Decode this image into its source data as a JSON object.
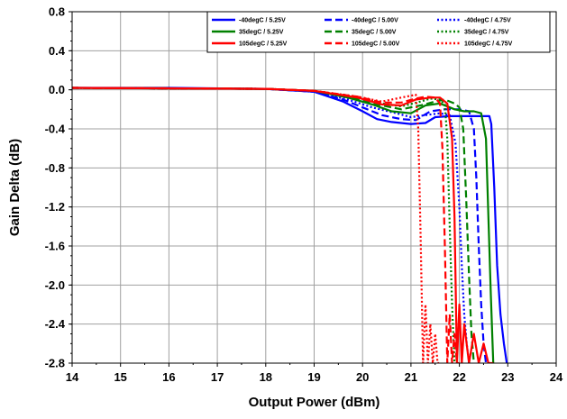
{
  "chart_data": {
    "type": "line",
    "title": "",
    "xlabel": "Output Power (dBm)",
    "ylabel": "Gain Delta (dB)",
    "xlim": [
      14,
      24
    ],
    "ylim": [
      -2.8,
      0.8
    ],
    "xticks": [
      14,
      15,
      16,
      17,
      18,
      19,
      20,
      21,
      22,
      23,
      24
    ],
    "yticks": [
      0.8,
      0.4,
      0.0,
      -0.4,
      -0.8,
      -1.2,
      -1.6,
      -2.0,
      -2.4,
      -2.8
    ],
    "xtick_labels": [
      "14",
      "15",
      "16",
      "17",
      "18",
      "19",
      "20",
      "21",
      "22",
      "23",
      "24"
    ],
    "ytick_labels": [
      "0.8",
      "0.4",
      "0.0",
      "-0.4",
      "-0.8",
      "-1.2",
      "-1.6",
      "-2.0",
      "-2.4",
      "-2.8"
    ],
    "grid": true,
    "legend_position": "top-right",
    "series": [
      {
        "name": "-40degC / 5.25V",
        "color": "#0000ff",
        "dash": "solid",
        "x": [
          14,
          16,
          18,
          19,
          19.6,
          20,
          20.3,
          20.6,
          21.0,
          21.3,
          21.5,
          21.8,
          22.0,
          22.3,
          22.5,
          22.62,
          22.66,
          22.72,
          22.78,
          22.85,
          22.92,
          22.98
        ],
        "y": [
          0.02,
          0.02,
          0.01,
          -0.02,
          -0.12,
          -0.22,
          -0.3,
          -0.33,
          -0.35,
          -0.34,
          -0.28,
          -0.27,
          -0.27,
          -0.27,
          -0.27,
          -0.27,
          -0.35,
          -1.0,
          -1.8,
          -2.3,
          -2.6,
          -2.8
        ]
      },
      {
        "name": "-40degC / 5.00V",
        "color": "#0000ff",
        "dash": "dashed",
        "x": [
          14,
          18,
          19,
          19.6,
          20,
          20.4,
          20.8,
          21.1,
          21.4,
          21.7,
          22.0,
          22.2,
          22.3,
          22.35,
          22.4,
          22.45,
          22.5,
          22.55
        ],
        "y": [
          0.02,
          0.01,
          -0.02,
          -0.1,
          -0.18,
          -0.26,
          -0.3,
          -0.31,
          -0.22,
          -0.2,
          -0.2,
          -0.22,
          -0.4,
          -0.9,
          -1.6,
          -2.2,
          -2.6,
          -2.8
        ]
      },
      {
        "name": "-40degC / 4.75V",
        "color": "#0000ff",
        "dash": "dotted",
        "x": [
          14,
          18,
          19,
          19.7,
          20.2,
          20.7,
          21.0,
          21.3,
          21.6,
          21.8,
          21.92,
          22.0,
          22.05,
          22.1,
          22.15,
          22.2
        ],
        "y": [
          0.02,
          0.01,
          -0.02,
          -0.1,
          -0.18,
          -0.24,
          -0.28,
          -0.26,
          -0.24,
          -0.26,
          -0.55,
          -1.2,
          -1.8,
          -2.3,
          -2.6,
          -2.8
        ]
      },
      {
        "name": "35degC / 5.25V",
        "color": "#008000",
        "dash": "solid",
        "x": [
          14,
          18,
          19,
          19.7,
          20.2,
          20.6,
          21.0,
          21.3,
          21.6,
          21.9,
          22.1,
          22.3,
          22.45,
          22.55,
          22.6,
          22.65,
          22.7
        ],
        "y": [
          0.02,
          0.01,
          -0.01,
          -0.08,
          -0.15,
          -0.22,
          -0.24,
          -0.16,
          -0.14,
          -0.2,
          -0.22,
          -0.22,
          -0.24,
          -0.5,
          -1.3,
          -2.1,
          -2.8
        ]
      },
      {
        "name": "35degC / 5.00V",
        "color": "#008000",
        "dash": "dashed",
        "x": [
          14,
          18,
          19,
          19.8,
          20.3,
          20.8,
          21.2,
          21.5,
          21.7,
          21.9,
          22.0,
          22.08,
          22.14,
          22.2,
          22.25,
          22.3
        ],
        "y": [
          0.02,
          0.01,
          -0.01,
          -0.08,
          -0.15,
          -0.2,
          -0.16,
          -0.12,
          -0.1,
          -0.14,
          -0.18,
          -0.4,
          -1.1,
          -1.9,
          -2.5,
          -2.8
        ]
      },
      {
        "name": "35degC / 4.75V",
        "color": "#008000",
        "dash": "dotted",
        "x": [
          14,
          18,
          19,
          19.9,
          20.4,
          20.8,
          21.2,
          21.4,
          21.6,
          21.7,
          21.75,
          21.8,
          21.85,
          21.9
        ],
        "y": [
          0.02,
          0.01,
          -0.01,
          -0.07,
          -0.14,
          -0.17,
          -0.12,
          -0.09,
          -0.1,
          -0.15,
          -0.5,
          -1.4,
          -2.2,
          -2.8
        ]
      },
      {
        "name": "105degC / 5.25V",
        "color": "#ff0000",
        "dash": "solid",
        "x": [
          14,
          18,
          19,
          19.9,
          20.4,
          20.8,
          21.1,
          21.4,
          21.6,
          21.75,
          21.85,
          21.9,
          21.95,
          22.0,
          22.05,
          22.1,
          22.2,
          22.3,
          22.4,
          22.5,
          22.6,
          22.7
        ],
        "y": [
          0.02,
          0.01,
          -0.01,
          -0.08,
          -0.15,
          -0.16,
          -0.1,
          -0.08,
          -0.08,
          -0.14,
          -0.5,
          -1.3,
          -2.8,
          -2.2,
          -2.8,
          -2.4,
          -2.8,
          -2.5,
          -2.8,
          -2.6,
          -2.8,
          -2.8
        ]
      },
      {
        "name": "105degC / 5.00V",
        "color": "#ff0000",
        "dash": "dashed",
        "x": [
          14,
          18,
          19,
          19.9,
          20.4,
          20.8,
          21.1,
          21.3,
          21.5,
          21.6,
          21.65,
          21.7,
          21.75,
          21.8,
          21.85,
          21.9,
          21.95,
          22.0
        ],
        "y": [
          0.02,
          0.01,
          -0.01,
          -0.07,
          -0.13,
          -0.13,
          -0.09,
          -0.07,
          -0.08,
          -0.14,
          -0.6,
          -1.6,
          -2.8,
          -2.3,
          -2.8,
          -2.5,
          -2.8,
          -2.8
        ]
      },
      {
        "name": "105degC / 4.75V",
        "color": "#ff0000",
        "dash": "dotted",
        "x": [
          14,
          18,
          19,
          19.9,
          20.4,
          20.8,
          21.0,
          21.1,
          21.15,
          21.2,
          21.25,
          21.3,
          21.35,
          21.4,
          21.45,
          21.5,
          21.55,
          21.6
        ],
        "y": [
          0.02,
          0.01,
          -0.01,
          -0.07,
          -0.12,
          -0.08,
          -0.06,
          -0.05,
          -0.4,
          -1.5,
          -2.8,
          -2.2,
          -2.8,
          -2.4,
          -2.8,
          -2.5,
          -2.8,
          -2.8
        ]
      }
    ]
  }
}
